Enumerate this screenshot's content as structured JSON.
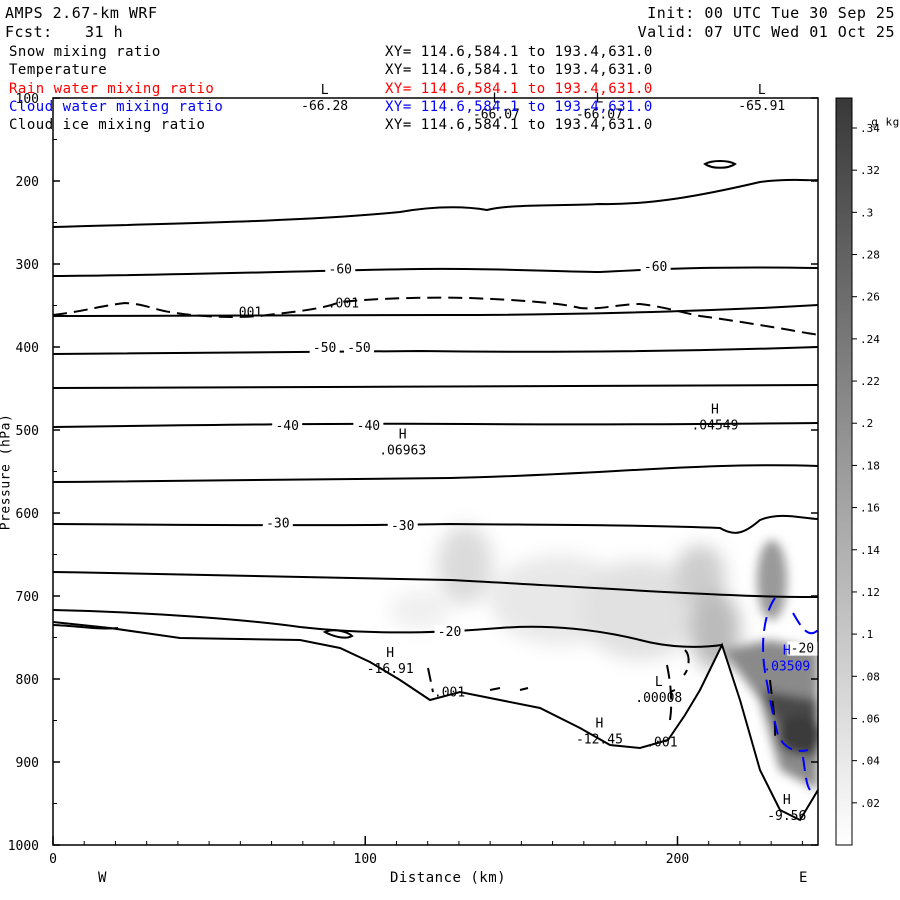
{
  "header": {
    "model": "AMPS 2.67-km WRF",
    "fcst_label": "Fcst:",
    "fcst_value": "31 h",
    "init": "Init: 00 UTC Tue 30 Sep 25",
    "valid": "Valid: 07 UTC Wed 01 Oct 25"
  },
  "fields": [
    {
      "name": "Snow mixing ratio",
      "xy": "XY= 114.6,584.1 to 193.4,631.0",
      "color": "#000000"
    },
    {
      "name": "Temperature",
      "xy": "XY= 114.6,584.1 to 193.4,631.0",
      "color": "#000000"
    },
    {
      "name": "Rain water mixing ratio",
      "xy": "XY= 114.6,584.1 to 193.4,631.0",
      "color": "#ff0000"
    },
    {
      "name": "Cloud water mixing ratio",
      "xy": "XY= 114.6,584.1 to 193.4,631.0",
      "color": "#0000ff"
    },
    {
      "name": "Cloud ice mixing ratio",
      "xy": "XY= 114.6,584.1 to 193.4,631.0",
      "color": "#000000"
    }
  ],
  "chart_data": {
    "type": "contour cross-section",
    "xlabel": "Distance (km)",
    "ylabel": "Pressure (hPa)",
    "xlim": [
      0,
      245
    ],
    "ylim": [
      1000,
      100
    ],
    "xticks": [
      0,
      100,
      200
    ],
    "yticks": [
      100,
      200,
      300,
      400,
      500,
      600,
      700,
      800,
      900,
      1000
    ],
    "left_label": "W",
    "right_label": "E",
    "colorbar": {
      "unit": "g kg",
      "unit_sup": "-1",
      "levels": [
        ".02",
        ".04",
        ".06",
        ".08",
        ".1",
        ".12",
        ".14",
        ".16",
        ".18",
        ".2",
        ".22",
        ".24",
        ".26",
        ".28",
        ".3",
        ".32",
        ".34"
      ]
    },
    "temperature_labels": [
      {
        "x": 92,
        "p": 310,
        "text": "-60"
      },
      {
        "x": 193,
        "p": 307,
        "text": "-60"
      },
      {
        "x": 87,
        "p": 405,
        "text": "-50"
      },
      {
        "x": 98,
        "p": 405,
        "text": "-50"
      },
      {
        "x": 75,
        "p": 499,
        "text": "-40"
      },
      {
        "x": 101,
        "p": 499,
        "text": "-40"
      },
      {
        "x": 72,
        "p": 616,
        "text": "-30"
      },
      {
        "x": 112,
        "p": 619,
        "text": "-30"
      },
      {
        "x": 127,
        "p": 747,
        "text": "-20"
      },
      {
        "x": 240,
        "p": 767,
        "text": "-20"
      }
    ],
    "snow_labels": [
      {
        "x": 62,
        "p": 362,
        "text": ".001"
      },
      {
        "x": 93,
        "p": 351,
        "text": ".001"
      },
      {
        "x": 127,
        "p": 820,
        "text": ".001"
      },
      {
        "x": 195,
        "p": 880,
        "text": ".001"
      }
    ],
    "extrema": [
      {
        "x": 87,
        "p": 105,
        "kind": "L",
        "value": "-66.28"
      },
      {
        "x": 142,
        "p": 115,
        "kind": "L",
        "value": "-66.07"
      },
      {
        "x": 175,
        "p": 115,
        "kind": "L",
        "value": "-66.07"
      },
      {
        "x": 227,
        "p": 105,
        "kind": "L",
        "value": "-65.91"
      },
      {
        "x": 212,
        "p": 490,
        "kind": "H",
        "value": ".04549"
      },
      {
        "x": 112,
        "p": 520,
        "kind": "H",
        "value": ".06963"
      },
      {
        "x": 108,
        "p": 783,
        "kind": "H",
        "value": "-16.91"
      },
      {
        "x": 194,
        "p": 818,
        "kind": "L",
        "value": ".00008"
      },
      {
        "x": 235,
        "p": 780,
        "kind": "H",
        "value": ".03509",
        "color": "#0000ff"
      },
      {
        "x": 175,
        "p": 868,
        "kind": "H",
        "value": "-12.45"
      },
      {
        "x": 235,
        "p": 960,
        "kind": "H",
        "value": "-9.56"
      }
    ]
  }
}
